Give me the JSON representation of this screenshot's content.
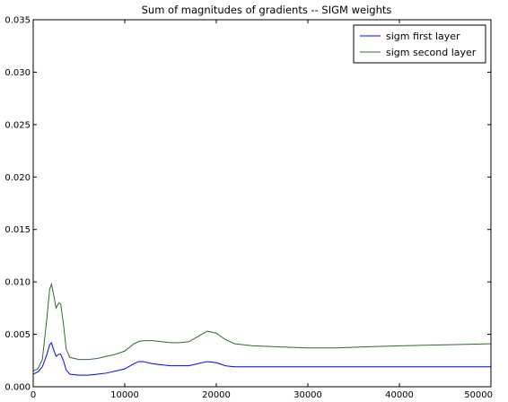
{
  "chart_data": {
    "type": "line",
    "title": "Sum of magnitudes of gradients -- SIGM weights",
    "xlabel": "",
    "ylabel": "",
    "xlim": [
      0,
      50000
    ],
    "ylim": [
      0.0,
      0.035
    ],
    "x_ticks": [
      0,
      10000,
      20000,
      30000,
      40000,
      50000
    ],
    "x_tick_labels": [
      "0",
      "10000",
      "20000",
      "30000",
      "40000",
      "50000"
    ],
    "y_ticks": [
      0.0,
      0.005,
      0.01,
      0.015,
      0.02,
      0.025,
      0.03,
      0.035
    ],
    "y_tick_labels": [
      "0.000",
      "0.005",
      "0.010",
      "0.015",
      "0.020",
      "0.025",
      "0.030",
      "0.035"
    ],
    "grid": false,
    "legend_position": "top-right",
    "series": [
      {
        "name": "sigm first layer",
        "color": "#0000ff",
        "points": [
          [
            0,
            0.0012
          ],
          [
            500,
            0.0014
          ],
          [
            1000,
            0.0019
          ],
          [
            1500,
            0.0031
          ],
          [
            1800,
            0.004
          ],
          [
            2000,
            0.0042
          ],
          [
            2200,
            0.0036
          ],
          [
            2500,
            0.0029
          ],
          [
            2800,
            0.0031
          ],
          [
            3000,
            0.0031
          ],
          [
            3300,
            0.0025
          ],
          [
            3600,
            0.0016
          ],
          [
            4000,
            0.0012
          ],
          [
            5000,
            0.0011
          ],
          [
            6000,
            0.0011
          ],
          [
            7000,
            0.0012
          ],
          [
            8000,
            0.0013
          ],
          [
            9000,
            0.0015
          ],
          [
            10000,
            0.0017
          ],
          [
            11000,
            0.0022
          ],
          [
            11500,
            0.0024
          ],
          [
            12000,
            0.0024
          ],
          [
            13000,
            0.0022
          ],
          [
            14000,
            0.0021
          ],
          [
            15000,
            0.002
          ],
          [
            16000,
            0.002
          ],
          [
            17000,
            0.002
          ],
          [
            18000,
            0.0022
          ],
          [
            19000,
            0.0024
          ],
          [
            20000,
            0.0023
          ],
          [
            21000,
            0.002
          ],
          [
            22000,
            0.0019
          ],
          [
            25000,
            0.0019
          ],
          [
            30000,
            0.0019
          ],
          [
            35000,
            0.0019
          ],
          [
            40000,
            0.0019
          ],
          [
            45000,
            0.0019
          ],
          [
            50000,
            0.0019
          ]
        ]
      },
      {
        "name": "sigm second layer",
        "color": "#2e6b2e",
        "points": [
          [
            0,
            0.0015
          ],
          [
            500,
            0.0017
          ],
          [
            1000,
            0.0026
          ],
          [
            1500,
            0.0066
          ],
          [
            1800,
            0.0093
          ],
          [
            2000,
            0.0098
          ],
          [
            2200,
            0.0089
          ],
          [
            2500,
            0.0075
          ],
          [
            2800,
            0.008
          ],
          [
            3000,
            0.0079
          ],
          [
            3300,
            0.006
          ],
          [
            3600,
            0.0036
          ],
          [
            4000,
            0.0028
          ],
          [
            5000,
            0.0026
          ],
          [
            6000,
            0.0026
          ],
          [
            7000,
            0.0027
          ],
          [
            8000,
            0.0029
          ],
          [
            9000,
            0.0031
          ],
          [
            10000,
            0.0034
          ],
          [
            11000,
            0.0041
          ],
          [
            11500,
            0.0043
          ],
          [
            12000,
            0.0044
          ],
          [
            13000,
            0.0044
          ],
          [
            14000,
            0.0043
          ],
          [
            15000,
            0.0042
          ],
          [
            16000,
            0.0042
          ],
          [
            17000,
            0.0043
          ],
          [
            18000,
            0.0048
          ],
          [
            19000,
            0.0053
          ],
          [
            20000,
            0.0051
          ],
          [
            21000,
            0.0045
          ],
          [
            22000,
            0.0041
          ],
          [
            24000,
            0.0039
          ],
          [
            27000,
            0.0038
          ],
          [
            30000,
            0.0037
          ],
          [
            33000,
            0.0037
          ],
          [
            36000,
            0.0038
          ],
          [
            40000,
            0.0039
          ],
          [
            45000,
            0.004
          ],
          [
            50000,
            0.0041
          ]
        ]
      }
    ]
  }
}
